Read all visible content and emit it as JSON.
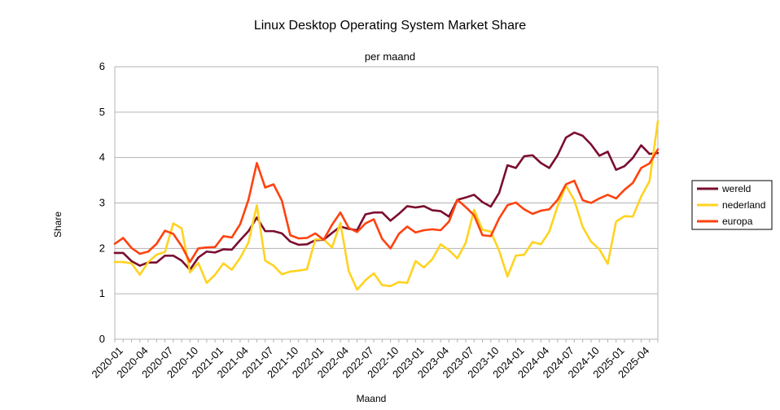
{
  "chart_data": {
    "type": "line",
    "title": "Linux Desktop Operating System Market Share",
    "subtitle": "per maand",
    "xlabel": "Maand",
    "ylabel": "Share",
    "ylim": [
      0,
      6
    ],
    "yticks": [
      0,
      1,
      2,
      3,
      4,
      5,
      6
    ],
    "grid": "horizontal",
    "legend_position": "right",
    "x": [
      "2020-01",
      "2020-02",
      "2020-03",
      "2020-04",
      "2020-05",
      "2020-06",
      "2020-07",
      "2020-08",
      "2020-09",
      "2020-10",
      "2020-11",
      "2020-12",
      "2021-01",
      "2021-02",
      "2021-03",
      "2021-04",
      "2021-05",
      "2021-06",
      "2021-07",
      "2021-08",
      "2021-09",
      "2021-10",
      "2021-11",
      "2021-12",
      "2022-01",
      "2022-02",
      "2022-03",
      "2022-04",
      "2022-05",
      "2022-06",
      "2022-07",
      "2022-08",
      "2022-09",
      "2022-10",
      "2022-11",
      "2022-12",
      "2023-01",
      "2023-02",
      "2023-03",
      "2023-04",
      "2023-05",
      "2023-06",
      "2023-07",
      "2023-08",
      "2023-09",
      "2023-10",
      "2023-11",
      "2023-12",
      "2024-01",
      "2024-02",
      "2024-03",
      "2024-04",
      "2024-05",
      "2024-06",
      "2024-07",
      "2024-08",
      "2024-09",
      "2024-10",
      "2024-11",
      "2024-12",
      "2025-01",
      "2025-02",
      "2025-03",
      "2025-04",
      "2025-05",
      "2025-06"
    ],
    "x_tick_labels": [
      "2020-01",
      "2020-04",
      "2020-07",
      "2020-10",
      "2021-01",
      "2021-04",
      "2021-07",
      "2021-10",
      "2022-01",
      "2022-04",
      "2022-07",
      "2022-10",
      "2023-01",
      "2023-04",
      "2023-07",
      "2023-10",
      "2024-01",
      "2024-04",
      "2024-07",
      "2024-10",
      "2025-01",
      "2025-04"
    ],
    "series": [
      {
        "name": "wereld",
        "color": "#7b0d2e",
        "values": [
          1.9,
          1.9,
          1.72,
          1.62,
          1.69,
          1.69,
          1.84,
          1.84,
          1.73,
          1.53,
          1.8,
          1.93,
          1.91,
          1.98,
          1.97,
          2.18,
          2.38,
          2.68,
          2.38,
          2.38,
          2.33,
          2.15,
          2.08,
          2.09,
          2.18,
          2.19,
          2.34,
          2.48,
          2.43,
          2.4,
          2.75,
          2.79,
          2.79,
          2.61,
          2.76,
          2.93,
          2.9,
          2.93,
          2.84,
          2.82,
          2.7,
          3.07,
          3.12,
          3.18,
          3.02,
          2.92,
          3.22,
          3.83,
          3.77,
          4.03,
          4.05,
          3.88,
          3.77,
          4.05,
          4.44,
          4.55,
          4.48,
          4.29,
          4.04,
          4.13,
          3.73,
          3.81,
          3.99,
          4.27,
          4.08,
          4.1
        ]
      },
      {
        "name": "nederland",
        "color": "#ffd320",
        "values": [
          1.7,
          1.7,
          1.67,
          1.42,
          1.7,
          1.86,
          1.92,
          2.55,
          2.44,
          1.47,
          1.68,
          1.24,
          1.42,
          1.67,
          1.53,
          1.79,
          2.13,
          2.95,
          1.73,
          1.62,
          1.43,
          1.49,
          1.51,
          1.54,
          2.2,
          2.2,
          2.02,
          2.56,
          1.5,
          1.09,
          1.3,
          1.45,
          1.19,
          1.17,
          1.26,
          1.24,
          1.72,
          1.58,
          1.76,
          2.09,
          1.96,
          1.78,
          2.12,
          2.85,
          2.41,
          2.37,
          1.95,
          1.38,
          1.84,
          1.86,
          2.14,
          2.09,
          2.37,
          2.93,
          3.38,
          3.06,
          2.47,
          2.15,
          1.98,
          1.66,
          2.59,
          2.71,
          2.7,
          3.14,
          3.48,
          4.8
        ]
      },
      {
        "name": "europa",
        "color": "#ff420e",
        "values": [
          2.1,
          2.23,
          2.01,
          1.88,
          1.93,
          2.1,
          2.39,
          2.32,
          2.05,
          1.7,
          2.0,
          2.02,
          2.03,
          2.27,
          2.24,
          2.53,
          3.07,
          3.88,
          3.34,
          3.41,
          3.05,
          2.29,
          2.22,
          2.23,
          2.33,
          2.19,
          2.52,
          2.79,
          2.45,
          2.36,
          2.55,
          2.64,
          2.21,
          2.0,
          2.32,
          2.48,
          2.35,
          2.4,
          2.42,
          2.4,
          2.59,
          3.07,
          2.91,
          2.73,
          2.29,
          2.27,
          2.66,
          2.95,
          3.01,
          2.86,
          2.76,
          2.83,
          2.86,
          3.07,
          3.41,
          3.49,
          3.06,
          3.0,
          3.1,
          3.18,
          3.1,
          3.29,
          3.44,
          3.77,
          3.87,
          4.18
        ]
      }
    ]
  }
}
